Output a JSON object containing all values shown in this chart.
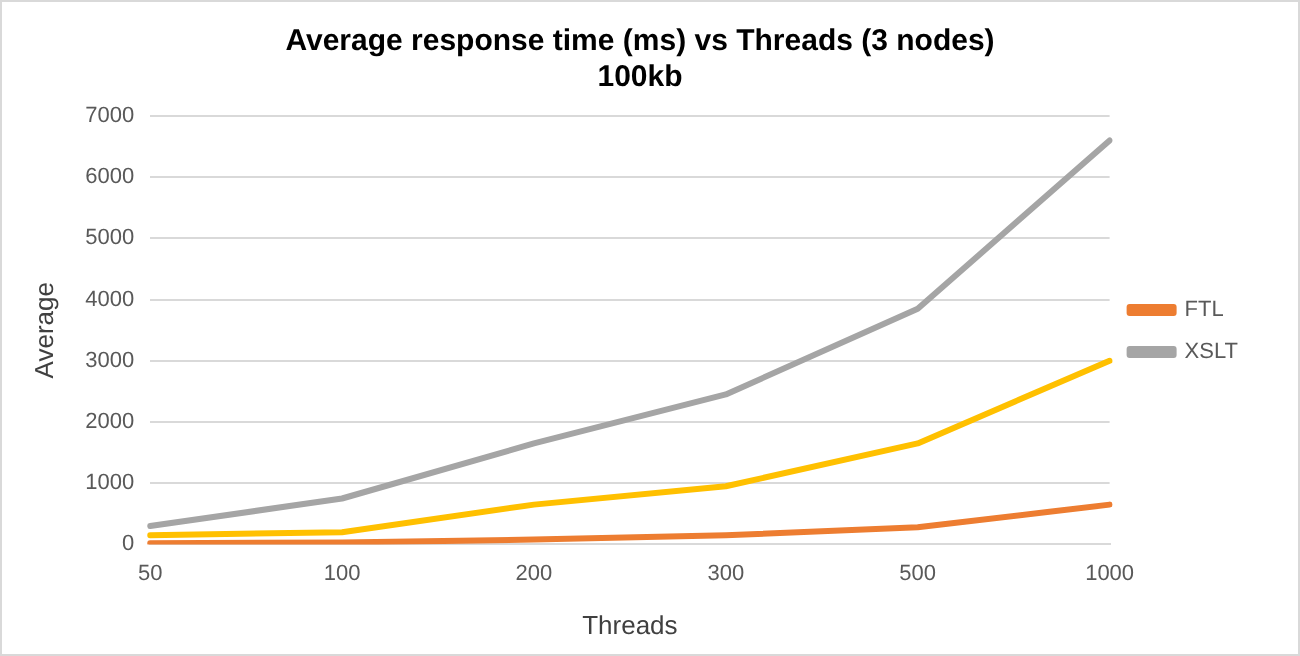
{
  "chart_data": {
    "type": "line",
    "title": "Average response time (ms) vs Threads (3 nodes)",
    "subtitle": "100kb",
    "xlabel": "Threads",
    "ylabel": "Average",
    "categories": [
      "50",
      "100",
      "200",
      "300",
      "500",
      "1000"
    ],
    "series": [
      {
        "name": "FTL",
        "color": "#ed7d31",
        "values": [
          20,
          30,
          80,
          150,
          280,
          650
        ]
      },
      {
        "name": "XSLT",
        "color": "#a5a5a5",
        "values": [
          300,
          750,
          1650,
          2450,
          3850,
          6600
        ]
      },
      {
        "color": "#ffc000",
        "values": [
          150,
          200,
          650,
          950,
          1650,
          3000
        ]
      }
    ],
    "ylim": [
      0,
      7000
    ],
    "yticks": [
      0,
      1000,
      2000,
      3000,
      4000,
      5000,
      6000,
      7000
    ],
    "grid": "y",
    "legend": "right",
    "marker": "none",
    "line_style": "solid"
  }
}
